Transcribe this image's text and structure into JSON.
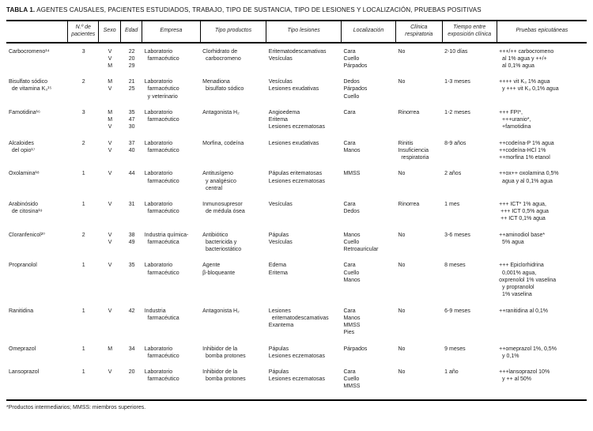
{
  "title": {
    "label": "TABLA 1.",
    "text": "AGENTES CAUSALES, PACIENTES ESTUDIADOS, TRABAJO, TIPO DE SUSTANCIA, TIPO DE LESIONES Y LOCALIZACIÓN, PRUEBAS POSITIVAS"
  },
  "columns": [
    "",
    "N.º de\npacientes",
    "Sexo",
    "Edad",
    "Empresa",
    "Tipo productos",
    "Tipo lesiones",
    "Localización",
    "Clínica\nrespiratoria",
    "Tiempo entre\nexposición clínica",
    "Pruebas epicutáneas"
  ],
  "column_keys": [
    "agente",
    "n-pacientes",
    "sexo",
    "edad",
    "empresa",
    "tipo-productos",
    "tipo-lesiones",
    "localizacion",
    "clinica-respiratoria",
    "tiempo-exposicion",
    "pruebas-epicutaneas"
  ],
  "rows": [
    [
      "Carbocromeno¹⁴",
      "3",
      "V\nV\nM",
      "22\n20\n29",
      "Laboratorio\n  farmacéutico",
      "Clorhidrato de\n  carbocromeno",
      "Eritematodescamativas\nVesículas",
      "Cara\nCuello\nPárpados",
      "No",
      "2-10 días",
      "+++/++ carbocromeno\n  al 1% agua y ++/+\n  al 0,1% agua"
    ],
    [
      "Bisulfato sódico\n  de vitamina K₃¹⁵",
      "2",
      "M\nV",
      "21\n25",
      "Laboratorio\n  farmacéutico\n  y veterinario",
      "Menadiona\n  bisulfato sódico",
      "Vesículas\nLesiones exudativas",
      "Dedos\nPárpados\nCuello",
      "No",
      "1-3 meses",
      "++++ vit K₃ 1% agua\n  y +++ vit K₃ 0,1% agua"
    ],
    [
      "Famotidina¹⁶",
      "3",
      "M\nM\nV",
      "35\n47\n30",
      "Laboratorio\n  farmacéutico",
      "Antagonista H₂",
      "Angioedema\nEritema\nLesiones eczematosas",
      "Cara",
      "Rinorrea",
      "1-2 meses",
      "+++ FPI*,\n  +++uranio*,\n  +famotidina"
    ],
    [
      "Alcaloides\n  del opio¹⁷",
      "2",
      "V\nV",
      "37\n40",
      "Laboratorio\n  farmacéutico",
      "Morfina, codeína",
      "Lesiones exudativas",
      "Cara\nManos",
      "Rinitis\nInsuficiencia\n  respiratoria",
      "8-9 años",
      "++codeína-P 1% agua\n++codeína-HCl 1%\n++morfina 1% etanol"
    ],
    [
      "Oxolamina¹⁸",
      "1",
      "V",
      "44",
      "Laboratorio\n  farmacéutico",
      "Antitusígeno\n  y analgésico\n  central",
      "Pápulas eritematosas\nLesiones eczematosas",
      "MMSS",
      "No",
      "2 años",
      "++ox++ oxolamina 0,5%\n  agua y al 0,1% agua"
    ],
    [
      "Arabinósido\n  de citosina¹⁹",
      "1",
      "V",
      "31",
      "Laboratorio\n  farmacéutico",
      "Inmunosupresor\n  de médula ósea",
      "Vesículas",
      "Cara\nDedos",
      "Rinorrea",
      "1 mes",
      "+++ ICT* 1% agua,\n +++ ICT 0,5% agua\n ++ ICT 0,1% agua"
    ],
    [
      "Cloranfenicol²⁰",
      "2",
      "V\nV",
      "38\n49",
      "Industria química-\n  farmacéutica",
      "Antibiótico\n  bactericida y\n  bacteriostático",
      "Pápulas\nVesículas",
      "Manos\nCuello\nRetroauricular",
      "No",
      "3-6 meses",
      "++aminodiol base*\n  5% agua"
    ],
    [
      "Propranolol",
      "1",
      "V",
      "35",
      "Laboratorio\n  farmacéutico",
      "Agente\nβ-bloqueante",
      "Edema\nEritema",
      "Cara\nCuello\nManos",
      "No",
      "8 meses",
      "+++ Epiclorhidrina\n  0,001% agua,\noxprenolol 1% vaselina\n  y propranolol\n  1% vaselina"
    ],
    [
      "Ranitidina",
      "1",
      "V",
      "42",
      "Industria\n  farmacéutica",
      "Antagonista H₂",
      "Lesiones\n  eritematodescamativas\nExantema",
      "Cara\nManos\nMMSS\nPies",
      "No",
      "6-9 meses",
      "++ranitidina al 0,1%"
    ],
    [
      "Omeprazol",
      "1",
      "M",
      "34",
      "Laboratorio\n  farmacéutico",
      "Inhibidor de la\n  bomba protones",
      "Pápulas\nLesiones eczematosas",
      "Párpados",
      "No",
      "9 meses",
      "++omeprazol 1%, 0,5%\n  y 0,1%"
    ],
    [
      "Lansoprazol",
      "1",
      "V",
      "20",
      "Laboratorio\n  farmacéutico",
      "Inhibidor de la\n  bomba protones",
      "Pápulas\nLesiones eczematosas",
      "Cara\nCuello\nMMSS",
      "No",
      "1 año",
      "+++lansoprazol 10%\n  y ++ al 50%"
    ]
  ],
  "footnote": "*Productos intermediarios; MMSS: miembros superiores."
}
